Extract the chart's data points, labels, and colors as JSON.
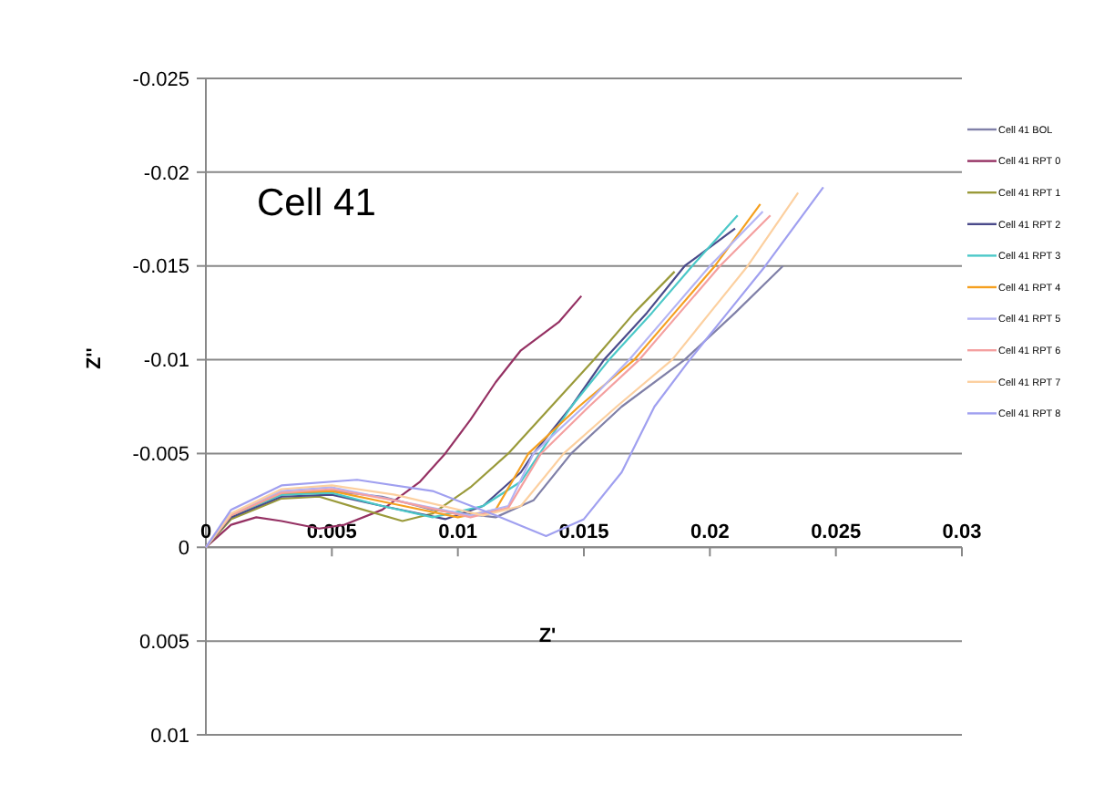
{
  "chart_data": {
    "type": "line",
    "xlabel": "Z'",
    "ylabel": "Z''",
    "annotations": [
      "Cell 41"
    ],
    "xlim": [
      0,
      0.03
    ],
    "xticks": [
      0,
      0.005,
      0.01,
      0.015,
      0.02,
      0.025,
      0.03
    ],
    "ylim": [
      0.01,
      -0.025
    ],
    "yticks": [
      -0.025,
      -0.02,
      -0.015,
      -0.01,
      -0.005,
      0,
      0.005,
      0.01
    ],
    "grid": "y",
    "legend": "right",
    "series": [
      {
        "name": "Cell 41 BOL",
        "color": "#8080a8",
        "x": [
          0,
          0.001,
          0.003,
          0.005,
          0.007,
          0.009,
          0.0115,
          0.013,
          0.0145,
          0.0165,
          0.019,
          0.021,
          0.0229
        ],
        "values": [
          0,
          -0.0017,
          -0.0028,
          -0.003,
          -0.0027,
          -0.002,
          -0.0016,
          -0.0025,
          -0.005,
          -0.0075,
          -0.01,
          -0.0125,
          -0.015
        ]
      },
      {
        "name": "Cell 41 RPT 0",
        "color": "#953163",
        "x": [
          0,
          0.001,
          0.002,
          0.003,
          0.0045,
          0.0055,
          0.007,
          0.0085,
          0.0095,
          0.0105,
          0.0115,
          0.0125,
          0.014,
          0.0149
        ],
        "values": [
          0,
          -0.0012,
          -0.0016,
          -0.0014,
          -0.001,
          -0.0012,
          -0.002,
          -0.0035,
          -0.005,
          -0.0068,
          -0.0088,
          -0.0105,
          -0.012,
          -0.0134
        ]
      },
      {
        "name": "Cell 41 RPT 1",
        "color": "#9a9a3a",
        "x": [
          0,
          0.001,
          0.003,
          0.0045,
          0.006,
          0.0078,
          0.009,
          0.0105,
          0.012,
          0.0137,
          0.0154,
          0.017,
          0.0186
        ],
        "values": [
          0,
          -0.0015,
          -0.0026,
          -0.0027,
          -0.0021,
          -0.0014,
          -0.0018,
          -0.0032,
          -0.005,
          -0.0075,
          -0.01,
          -0.0125,
          -0.0147
        ]
      },
      {
        "name": "Cell 41 RPT 2",
        "color": "#4a4a8a",
        "x": [
          0,
          0.001,
          0.003,
          0.005,
          0.007,
          0.0095,
          0.011,
          0.0125,
          0.013,
          0.0145,
          0.0158,
          0.0175,
          0.019,
          0.021
        ],
        "values": [
          0,
          -0.0016,
          -0.0027,
          -0.0028,
          -0.0022,
          -0.0015,
          -0.0022,
          -0.004,
          -0.005,
          -0.0075,
          -0.01,
          -0.0125,
          -0.015,
          -0.017
        ]
      },
      {
        "name": "Cell 41 RPT 3",
        "color": "#4bc8c8",
        "x": [
          0,
          0.001,
          0.003,
          0.005,
          0.007,
          0.009,
          0.011,
          0.0125,
          0.013,
          0.0145,
          0.016,
          0.0177,
          0.0193,
          0.0211
        ],
        "values": [
          0,
          -0.0017,
          -0.0028,
          -0.0029,
          -0.0022,
          -0.0016,
          -0.0022,
          -0.0035,
          -0.0045,
          -0.0075,
          -0.01,
          -0.0125,
          -0.015,
          -0.0177
        ]
      },
      {
        "name": "Cell 41 RPT 4",
        "color": "#f5a020",
        "x": [
          0,
          0.001,
          0.003,
          0.005,
          0.0075,
          0.01,
          0.0115,
          0.0128,
          0.0148,
          0.017,
          0.0186,
          0.0202,
          0.022
        ],
        "values": [
          0,
          -0.0017,
          -0.0029,
          -0.003,
          -0.0023,
          -0.0016,
          -0.002,
          -0.005,
          -0.0075,
          -0.01,
          -0.0125,
          -0.015,
          -0.0183
        ]
      },
      {
        "name": "Cell 41 RPT 5",
        "color": "#b4b4f4",
        "x": [
          0,
          0.001,
          0.003,
          0.005,
          0.0075,
          0.0105,
          0.012,
          0.013,
          0.015,
          0.0168,
          0.0184,
          0.02,
          0.0221
        ],
        "values": [
          0,
          -0.0018,
          -0.003,
          -0.0032,
          -0.0025,
          -0.0017,
          -0.0022,
          -0.005,
          -0.0075,
          -0.01,
          -0.0125,
          -0.015,
          -0.0179
        ]
      },
      {
        "name": "Cell 41 RPT 6",
        "color": "#f4a0a0",
        "x": [
          0,
          0.001,
          0.003,
          0.005,
          0.0075,
          0.0105,
          0.012,
          0.0133,
          0.0152,
          0.0172,
          0.0188,
          0.0204,
          0.0224
        ],
        "values": [
          0,
          -0.0017,
          -0.0029,
          -0.0031,
          -0.0025,
          -0.0016,
          -0.0021,
          -0.005,
          -0.0075,
          -0.01,
          -0.0125,
          -0.015,
          -0.0177
        ]
      },
      {
        "name": "Cell 41 RPT 7",
        "color": "#fcd0a0",
        "x": [
          0,
          0.001,
          0.003,
          0.005,
          0.0075,
          0.011,
          0.0125,
          0.0142,
          0.0163,
          0.0185,
          0.02,
          0.0215,
          0.0235
        ],
        "values": [
          0,
          -0.0018,
          -0.0031,
          -0.0033,
          -0.0028,
          -0.0017,
          -0.0022,
          -0.005,
          -0.0075,
          -0.01,
          -0.0125,
          -0.015,
          -0.0189
        ]
      },
      {
        "name": "Cell 41 RPT 8",
        "color": "#a0a0f0",
        "x": [
          0,
          0.001,
          0.003,
          0.006,
          0.009,
          0.0115,
          0.0135,
          0.015,
          0.0165,
          0.0178,
          0.0192,
          0.0207,
          0.0222,
          0.0245
        ],
        "values": [
          0,
          -0.002,
          -0.0033,
          -0.0036,
          -0.003,
          -0.0017,
          -0.0006,
          -0.0015,
          -0.004,
          -0.0075,
          -0.01,
          -0.0125,
          -0.015,
          -0.0192
        ]
      }
    ]
  }
}
